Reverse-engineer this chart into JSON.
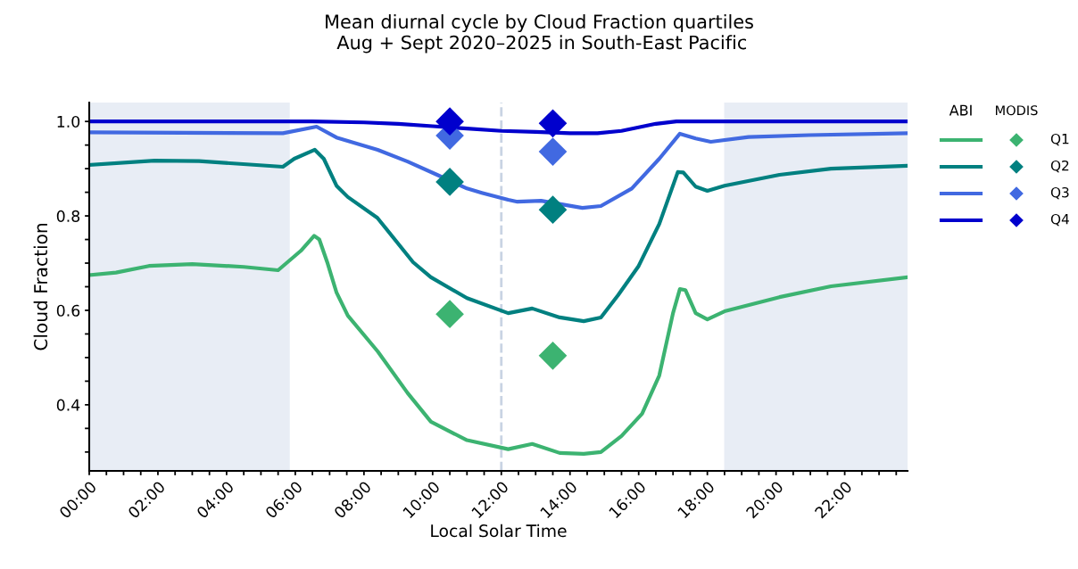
{
  "chart_data": {
    "type": "line",
    "title": "Mean diurnal cycle by Cloud Fraction quartiles\n Aug + Sept 2020–2025 in South-East Pacific",
    "xlabel": "Local Solar Time",
    "ylabel": "Cloud Fraction",
    "xlim": [
      0,
      23.83
    ],
    "ylim": [
      0.26,
      1.04
    ],
    "xticks": [
      {
        "value": 0,
        "label": "00:00"
      },
      {
        "value": 0.5,
        "label": null
      },
      {
        "value": 1,
        "label": null
      },
      {
        "value": 1.5,
        "label": null
      },
      {
        "value": 2,
        "label": "02:00"
      },
      {
        "value": 2.5,
        "label": null
      },
      {
        "value": 3,
        "label": null
      },
      {
        "value": 3.5,
        "label": null
      },
      {
        "value": 4,
        "label": "04:00"
      },
      {
        "value": 4.5,
        "label": null
      },
      {
        "value": 5,
        "label": null
      },
      {
        "value": 5.5,
        "label": null
      },
      {
        "value": 6,
        "label": "06:00"
      },
      {
        "value": 6.5,
        "label": null
      },
      {
        "value": 7,
        "label": null
      },
      {
        "value": 7.5,
        "label": null
      },
      {
        "value": 8,
        "label": "08:00"
      },
      {
        "value": 8.5,
        "label": null
      },
      {
        "value": 9,
        "label": null
      },
      {
        "value": 9.5,
        "label": null
      },
      {
        "value": 10,
        "label": "10:00"
      },
      {
        "value": 10.5,
        "label": null
      },
      {
        "value": 11,
        "label": null
      },
      {
        "value": 11.5,
        "label": null
      },
      {
        "value": 12,
        "label": "12:00"
      },
      {
        "value": 12.5,
        "label": null
      },
      {
        "value": 13,
        "label": null
      },
      {
        "value": 13.5,
        "label": null
      },
      {
        "value": 14,
        "label": "14:00"
      },
      {
        "value": 14.5,
        "label": null
      },
      {
        "value": 15,
        "label": null
      },
      {
        "value": 15.5,
        "label": null
      },
      {
        "value": 16,
        "label": "16:00"
      },
      {
        "value": 16.5,
        "label": null
      },
      {
        "value": 17,
        "label": null
      },
      {
        "value": 17.5,
        "label": null
      },
      {
        "value": 18,
        "label": "18:00"
      },
      {
        "value": 18.5,
        "label": null
      },
      {
        "value": 19,
        "label": null
      },
      {
        "value": 19.5,
        "label": null
      },
      {
        "value": 20,
        "label": "20:00"
      },
      {
        "value": 20.5,
        "label": null
      },
      {
        "value": 21,
        "label": null
      },
      {
        "value": 21.5,
        "label": null
      },
      {
        "value": 22,
        "label": "22:00"
      },
      {
        "value": 22.5,
        "label": null
      },
      {
        "value": 23,
        "label": null
      },
      {
        "value": 23.5,
        "label": null
      }
    ],
    "yticks": [
      {
        "value": 0.3,
        "label": null
      },
      {
        "value": 0.35,
        "label": null
      },
      {
        "value": 0.4,
        "label": "0.4"
      },
      {
        "value": 0.45,
        "label": null
      },
      {
        "value": 0.5,
        "label": null
      },
      {
        "value": 0.55,
        "label": null
      },
      {
        "value": 0.6,
        "label": "0.6"
      },
      {
        "value": 0.65,
        "label": null
      },
      {
        "value": 0.7,
        "label": null
      },
      {
        "value": 0.75,
        "label": null
      },
      {
        "value": 0.8,
        "label": "0.8"
      },
      {
        "value": 0.85,
        "label": null
      },
      {
        "value": 0.9,
        "label": null
      },
      {
        "value": 0.95,
        "label": null
      },
      {
        "value": 1.0,
        "label": "1.0"
      }
    ],
    "grid": false,
    "legend": "top right",
    "annotations": [
      "ABI",
      "MODIS"
    ],
    "bands": [
      {
        "axis": "x",
        "from": 0,
        "to": 5.84,
        "color": "#e8edf5"
      },
      {
        "axis": "x",
        "from": 18.49,
        "to": 23.83,
        "color": "#e8edf5"
      }
    ],
    "ref_lines": [
      {
        "axis": "x",
        "value": 12,
        "color": "#c8d3e3",
        "line_style": "dashed"
      }
    ],
    "series": [
      {
        "color": "#3cb371",
        "x": [
          0.05,
          0.78,
          1.74,
          3.0,
          4.5,
          5.5,
          6.16,
          6.55,
          6.7,
          6.93,
          7.2,
          7.53,
          8.4,
          9.27,
          9.95,
          11.0,
          12.2,
          12.9,
          13.7,
          14.4,
          14.9,
          15.5,
          16.1,
          16.6,
          17.0,
          17.2,
          17.36,
          17.66,
          18.0,
          18.5,
          20.1,
          21.6,
          23.82
        ],
        "values": [
          0.675,
          0.68,
          0.694,
          0.698,
          0.692,
          0.685,
          0.726,
          0.758,
          0.75,
          0.702,
          0.638,
          0.589,
          0.513,
          0.425,
          0.364,
          0.325,
          0.306,
          0.317,
          0.298,
          0.296,
          0.3,
          0.334,
          0.381,
          0.462,
          0.594,
          0.645,
          0.643,
          0.594,
          0.581,
          0.598,
          0.628,
          0.651,
          0.67
        ]
      },
      {
        "color": "#008080",
        "x": [
          0.05,
          1.9,
          3.2,
          5.64,
          5.97,
          6.57,
          6.83,
          7.2,
          7.53,
          8.39,
          9.43,
          9.95,
          11.0,
          12.2,
          12.9,
          13.7,
          14.4,
          14.9,
          15.4,
          16.0,
          16.6,
          17.14,
          17.3,
          17.66,
          18.0,
          18.5,
          20.1,
          21.6,
          23.82
        ],
        "values": [
          0.908,
          0.917,
          0.916,
          0.904,
          0.921,
          0.94,
          0.921,
          0.864,
          0.84,
          0.796,
          0.702,
          0.67,
          0.626,
          0.594,
          0.604,
          0.585,
          0.577,
          0.585,
          0.632,
          0.694,
          0.783,
          0.893,
          0.892,
          0.862,
          0.853,
          0.864,
          0.887,
          0.9,
          0.906
        ]
      },
      {
        "color": "#4169e1",
        "x": [
          0.05,
          5.64,
          6.62,
          7.2,
          8.4,
          9.27,
          10.13,
          11.0,
          11.43,
          12.2,
          12.47,
          13.16,
          14.36,
          14.9,
          15.8,
          16.6,
          17.2,
          17.66,
          18.1,
          19.2,
          20.96,
          23.82
        ],
        "values": [
          0.977,
          0.975,
          0.989,
          0.966,
          0.94,
          0.915,
          0.887,
          0.858,
          0.849,
          0.834,
          0.83,
          0.832,
          0.817,
          0.821,
          0.858,
          0.921,
          0.974,
          0.964,
          0.957,
          0.967,
          0.971,
          0.975
        ]
      },
      {
        "color": "#0000cd",
        "x": [
          0.05,
          6.5,
          8.0,
          9.0,
          10.0,
          11.0,
          12.0,
          13.0,
          14.0,
          14.8,
          15.5,
          16.5,
          17.1,
          23.82
        ],
        "values": [
          1.0,
          1.0,
          0.998,
          0.995,
          0.99,
          0.985,
          0.98,
          0.978,
          0.975,
          0.975,
          0.98,
          0.995,
          1.0,
          1.0
        ]
      },
      {
        "name": "Q1",
        "type": "scatter",
        "marker": "diamond",
        "color": "#3cb371",
        "x": [
          10.5,
          13.5
        ],
        "values": [
          0.592,
          0.504
        ]
      },
      {
        "name": "Q2",
        "type": "scatter",
        "marker": "diamond",
        "color": "#008080",
        "x": [
          10.5,
          13.5
        ],
        "values": [
          0.872,
          0.813
        ]
      },
      {
        "name": "Q3",
        "type": "scatter",
        "marker": "diamond",
        "color": "#4169e1",
        "x": [
          10.5,
          13.5
        ],
        "values": [
          0.97,
          0.936
        ]
      },
      {
        "name": "Q4",
        "type": "scatter",
        "marker": "diamond",
        "color": "#0000cd",
        "x": [
          10.5,
          13.5
        ],
        "values": [
          1.0,
          0.996
        ]
      }
    ]
  }
}
